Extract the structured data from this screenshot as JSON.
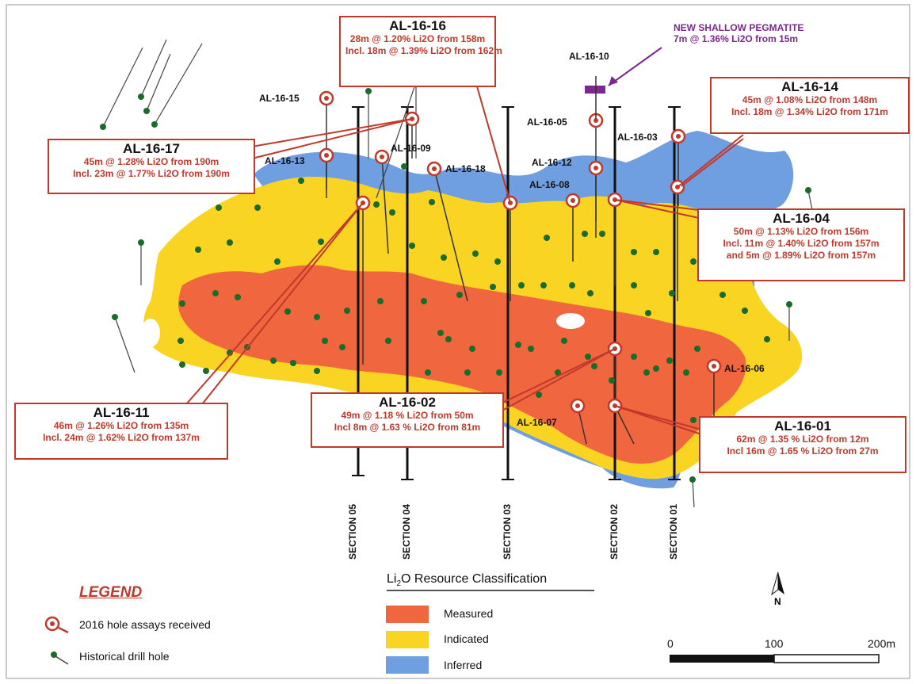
{
  "callouts": {
    "al1616": {
      "title": "AL-16-16",
      "l1": "28m @ 1.20% Li2O from 158m",
      "l2": "Incl. 18m @ 1.39% Li2O from 162m"
    },
    "al1614": {
      "title": "AL-16-14",
      "l1": "45m @ 1.08% Li2O from 148m",
      "l2": "Incl. 18m @ 1.34% Li2O from 171m"
    },
    "al1617": {
      "title": "AL-16-17",
      "l1": "45m @ 1.28% Li2O from 190m",
      "l2": "Incl. 23m @ 1.77% Li2O from 190m"
    },
    "al1604": {
      "title": "AL-16-04",
      "l1": "50m @ 1.13% Li2O from 156m",
      "l2": "Incl. 11m @ 1.40% Li2O from 157m",
      "l3": "and 5m @ 1.89% Li2O from 157m"
    },
    "al1611": {
      "title": "AL-16-11",
      "l1": "46m @ 1.26% Li2O from 135m",
      "l2": "Incl. 24m @ 1.62% Li2O from 137m"
    },
    "al1602": {
      "title": "AL-16-02",
      "l1": "49m @ 1.18 % Li2O from 50m",
      "l2": "Incl 8m @ 1.63 % Li2O from 81m"
    },
    "al1601": {
      "title": "AL-16-01",
      "l1": "62m @ 1.35 % Li2O from 12m",
      "l2": "Incl 16m @ 1.65 % Li2O from 27m"
    }
  },
  "new_pegmatite": {
    "title": "NEW SHALLOW PEGMATITE",
    "detail": "7m @ 1.36% Li2O from 15m"
  },
  "hole_labels": {
    "h15": "AL-16-15",
    "h13": "AL-16-13",
    "h09": "AL-16-09",
    "h18": "AL-16-18",
    "h10": "AL-16-10",
    "h05": "AL-16-05",
    "h03": "AL-16-03",
    "h12": "AL-16-12",
    "h08": "AL-16-08",
    "h06": "AL-16-06",
    "h07": "AL-16-07"
  },
  "sections": {
    "s05": "SECTION 05",
    "s04": "SECTION 04",
    "s03": "SECTION 03",
    "s02": "SECTION 02",
    "s01": "SECTION 01"
  },
  "legend": {
    "title": "LEGEND",
    "assays": "2016 hole assays received",
    "historical": "Historical drill hole"
  },
  "classification": {
    "title_chem": "Li",
    "title_sub": "2",
    "title_rest": "O  Resource Classification",
    "measured": "Measured",
    "indicated": "Indicated",
    "inferred": "Inferred"
  },
  "scale": {
    "zero": "0",
    "mid": "100",
    "end": "200m"
  },
  "north": "N",
  "colors": {
    "measured": "#f0663f",
    "indicated": "#f9d423",
    "inferred": "#6f9fe0",
    "callout_border": "#c0392b",
    "drill_hole": "#1b6b2a",
    "pegmatite": "#7b2a8c"
  }
}
